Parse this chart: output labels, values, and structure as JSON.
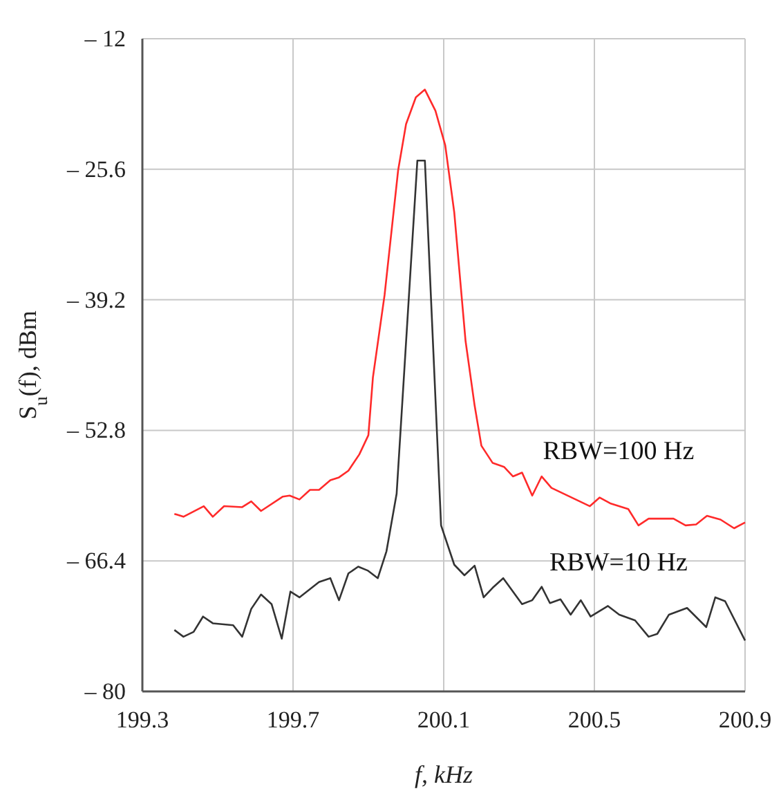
{
  "chart_data": {
    "type": "line",
    "xlabel": "f, kHz",
    "ylabel": "S$_{u}$(f), dBm",
    "xlim": [
      199.3,
      200.9
    ],
    "xticks": [
      199.3,
      199.7,
      200.1,
      200.5,
      200.9
    ],
    "ylim": [
      -80,
      -12
    ],
    "yticks": [
      {
        "value": -12,
        "label": "– 12"
      },
      {
        "value": -25.6,
        "label": "– 25.6"
      },
      {
        "value": -39.2,
        "label": "– 39.2"
      },
      {
        "value": -52.8,
        "label": "– 52.8"
      },
      {
        "value": -66.4,
        "label": "– 66.4"
      },
      {
        "value": -80,
        "label": "– 80"
      }
    ],
    "grid": true,
    "legend": false,
    "line_style": "solid",
    "marker": "none",
    "series": [
      {
        "name": "RBW=100 Hz",
        "color": "#ff2a2a",
        "x": [
          199.385,
          199.409,
          199.463,
          199.487,
          199.517,
          199.565,
          199.589,
          199.615,
          199.673,
          199.691,
          199.717,
          199.745,
          199.769,
          199.799,
          199.822,
          199.847,
          199.876,
          199.9,
          199.912,
          199.943,
          199.979,
          200.0,
          200.026,
          200.05,
          200.078,
          200.104,
          200.128,
          200.158,
          200.182,
          200.2,
          200.23,
          200.26,
          200.284,
          200.308,
          200.335,
          200.36,
          200.386,
          200.488,
          200.514,
          200.542,
          200.59,
          200.617,
          200.644,
          200.71,
          200.742,
          200.77,
          200.799,
          200.835,
          200.871,
          200.9
        ],
        "values": [
          -61.5,
          -61.8,
          -60.7,
          -61.8,
          -60.7,
          -60.8,
          -60.2,
          -61.2,
          -59.7,
          -59.6,
          -60.0,
          -59.0,
          -59.0,
          -58.0,
          -57.7,
          -57.0,
          -55.3,
          -53.3,
          -47.3,
          -38.7,
          -25.7,
          -20.9,
          -18.1,
          -17.3,
          -19.5,
          -23.1,
          -30.1,
          -43.5,
          -50.2,
          -54.4,
          -56.2,
          -56.6,
          -57.6,
          -57.2,
          -59.6,
          -57.6,
          -58.8,
          -60.7,
          -59.8,
          -60.4,
          -61.0,
          -62.7,
          -62.0,
          -62.0,
          -62.7,
          -62.6,
          -61.7,
          -62.1,
          -63.0,
          -62.4
        ]
      },
      {
        "name": "RBW=10 Hz",
        "color": "#333333",
        "x": [
          199.385,
          199.409,
          199.436,
          199.461,
          199.487,
          199.541,
          199.565,
          199.589,
          199.615,
          199.643,
          199.67,
          199.693,
          199.717,
          199.769,
          199.799,
          199.822,
          199.847,
          199.873,
          199.898,
          199.925,
          199.948,
          199.975,
          200.03,
          200.05,
          200.093,
          200.128,
          200.155,
          200.182,
          200.206,
          200.23,
          200.258,
          200.308,
          200.335,
          200.36,
          200.382,
          200.41,
          200.437,
          200.464,
          200.49,
          200.536,
          200.566,
          200.608,
          200.644,
          200.667,
          200.698,
          200.746,
          200.797,
          200.821,
          200.847,
          200.9
        ],
        "values": [
          -73.6,
          -74.3,
          -73.8,
          -72.2,
          -72.9,
          -73.1,
          -74.3,
          -71.4,
          -69.9,
          -70.9,
          -74.5,
          -69.6,
          -70.2,
          -68.6,
          -68.2,
          -70.5,
          -67.7,
          -67.0,
          -67.4,
          -68.2,
          -65.4,
          -59.4,
          -24.7,
          -24.7,
          -62.7,
          -66.8,
          -67.9,
          -66.9,
          -70.2,
          -69.2,
          -68.2,
          -70.9,
          -70.5,
          -69.1,
          -70.8,
          -70.4,
          -72.0,
          -70.5,
          -72.2,
          -71.1,
          -72.0,
          -72.6,
          -74.3,
          -74.0,
          -72.0,
          -71.3,
          -73.3,
          -70.2,
          -70.6,
          -74.7
        ]
      }
    ]
  }
}
